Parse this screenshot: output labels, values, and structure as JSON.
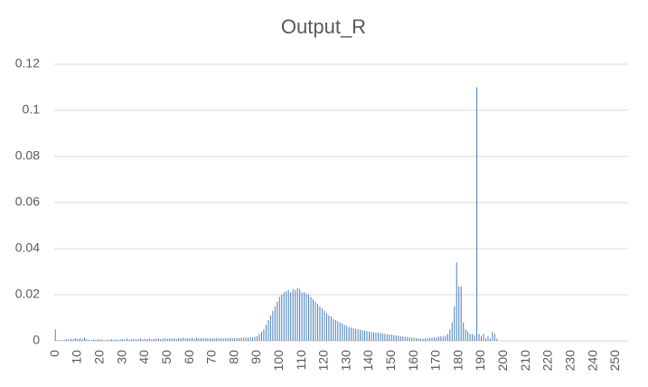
{
  "chart_data": {
    "type": "bar",
    "title": "Output_R",
    "color": "#4a7ebb",
    "ylim": [
      0,
      0.12
    ],
    "yticks": [
      0,
      0.02,
      0.04,
      0.06,
      0.08,
      0.1,
      0.12
    ],
    "grid": true,
    "categories": [
      0,
      null,
      null,
      null,
      null,
      null,
      null,
      null,
      null,
      null,
      10,
      null,
      null,
      null,
      null,
      null,
      null,
      null,
      null,
      null,
      20,
      null,
      null,
      null,
      null,
      null,
      null,
      null,
      null,
      null,
      30,
      null,
      null,
      null,
      null,
      null,
      null,
      null,
      null,
      null,
      40,
      null,
      null,
      null,
      null,
      null,
      null,
      null,
      null,
      null,
      50,
      null,
      null,
      null,
      null,
      null,
      null,
      null,
      null,
      null,
      60,
      null,
      null,
      null,
      null,
      null,
      null,
      null,
      null,
      null,
      70,
      null,
      null,
      null,
      null,
      null,
      null,
      null,
      null,
      null,
      80,
      null,
      null,
      null,
      null,
      null,
      null,
      null,
      null,
      null,
      90,
      null,
      null,
      null,
      null,
      null,
      null,
      null,
      null,
      null,
      100,
      null,
      null,
      null,
      null,
      null,
      null,
      null,
      null,
      null,
      110,
      null,
      null,
      null,
      null,
      null,
      null,
      null,
      null,
      null,
      120,
      null,
      null,
      null,
      null,
      null,
      null,
      null,
      null,
      null,
      130,
      null,
      null,
      null,
      null,
      null,
      null,
      null,
      null,
      null,
      140,
      null,
      null,
      null,
      null,
      null,
      null,
      null,
      null,
      null,
      150,
      null,
      null,
      null,
      null,
      null,
      null,
      null,
      null,
      null,
      160,
      null,
      null,
      null,
      null,
      null,
      null,
      null,
      null,
      null,
      170,
      null,
      null,
      null,
      null,
      null,
      null,
      null,
      null,
      null,
      180,
      null,
      null,
      null,
      null,
      null,
      null,
      null,
      null,
      null,
      190,
      null,
      null,
      null,
      null,
      null,
      null,
      null,
      null,
      null,
      200,
      null,
      null,
      null,
      null,
      null,
      null,
      null,
      null,
      null,
      210,
      null,
      null,
      null,
      null,
      null,
      null,
      null,
      null,
      null,
      220,
      null,
      null,
      null,
      null,
      null,
      null,
      null,
      null,
      null,
      230,
      null,
      null,
      null,
      null,
      null,
      null,
      null,
      null,
      null,
      240,
      null,
      null,
      null,
      null,
      null,
      null,
      null,
      null,
      null,
      250,
      null,
      null,
      null,
      null,
      null
    ],
    "values": [
      0.005,
      0.0003,
      0.0003,
      0.0003,
      0.0005,
      0.0008,
      0.0006,
      0.0009,
      0.0008,
      0.0012,
      0.0009,
      0.0011,
      0.0008,
      0.0015,
      0.0007,
      0.0004,
      0.0003,
      0.0006,
      0.0004,
      0.0007,
      0.0006,
      0.0005,
      0.0003,
      0.0006,
      0.0004,
      0.0008,
      0.0005,
      0.0006,
      0.0004,
      0.0007,
      0.0008,
      0.0006,
      0.001,
      0.0005,
      0.0007,
      0.0009,
      0.0006,
      0.0008,
      0.0011,
      0.0007,
      0.0009,
      0.0008,
      0.001,
      0.0007,
      0.0008,
      0.0009,
      0.0011,
      0.0008,
      0.001,
      0.0012,
      0.0009,
      0.0011,
      0.001,
      0.0012,
      0.0009,
      0.0013,
      0.0011,
      0.0014,
      0.001,
      0.0012,
      0.0011,
      0.0013,
      0.001,
      0.0014,
      0.0011,
      0.0012,
      0.0013,
      0.001,
      0.0012,
      0.0011,
      0.0012,
      0.001,
      0.0013,
      0.0011,
      0.0012,
      0.001,
      0.0012,
      0.0011,
      0.0013,
      0.0012,
      0.0011,
      0.0013,
      0.0012,
      0.0014,
      0.0013,
      0.0015,
      0.0014,
      0.0016,
      0.0015,
      0.0018,
      0.002,
      0.003,
      0.004,
      0.005,
      0.007,
      0.009,
      0.011,
      0.013,
      0.015,
      0.017,
      0.019,
      0.02,
      0.021,
      0.0215,
      0.022,
      0.021,
      0.0225,
      0.022,
      0.023,
      0.0225,
      0.021,
      0.021,
      0.0205,
      0.02,
      0.019,
      0.018,
      0.017,
      0.016,
      0.015,
      0.014,
      0.013,
      0.012,
      0.011,
      0.0105,
      0.0095,
      0.009,
      0.0085,
      0.008,
      0.0075,
      0.007,
      0.0065,
      0.006,
      0.0058,
      0.0055,
      0.0052,
      0.005,
      0.0048,
      0.0046,
      0.0044,
      0.0042,
      0.004,
      0.0038,
      0.0037,
      0.0036,
      0.0035,
      0.0034,
      0.0032,
      0.003,
      0.0029,
      0.0028,
      0.0027,
      0.0025,
      0.0024,
      0.0022,
      0.002,
      0.0019,
      0.0018,
      0.0016,
      0.0015,
      0.0014,
      0.0013,
      0.0012,
      0.0011,
      0.001,
      0.001,
      0.0011,
      0.0012,
      0.0013,
      0.0014,
      0.0015,
      0.0015,
      0.0018,
      0.002,
      0.0018,
      0.0022,
      0.003,
      0.005,
      0.008,
      0.015,
      0.034,
      0.0235,
      0.0235,
      0.008,
      0.005,
      0.004,
      0.003,
      0.003,
      0.0025,
      0.11,
      0.003,
      0.002,
      0.003,
      0.001,
      0.002,
      0.001,
      0.004,
      0.003,
      0.001,
      0,
      0,
      0,
      0,
      0,
      0,
      0,
      0,
      0,
      0,
      0,
      0,
      0,
      0,
      0,
      0,
      0,
      0,
      0,
      0,
      0,
      0,
      0,
      0,
      0,
      0,
      0,
      0,
      0,
      0,
      0,
      0,
      0,
      0,
      0,
      0,
      0,
      0,
      0,
      0,
      0,
      0,
      0,
      0,
      0,
      0,
      0,
      0,
      0,
      0,
      0,
      0,
      0,
      0,
      0,
      0,
      0,
      0
    ]
  }
}
